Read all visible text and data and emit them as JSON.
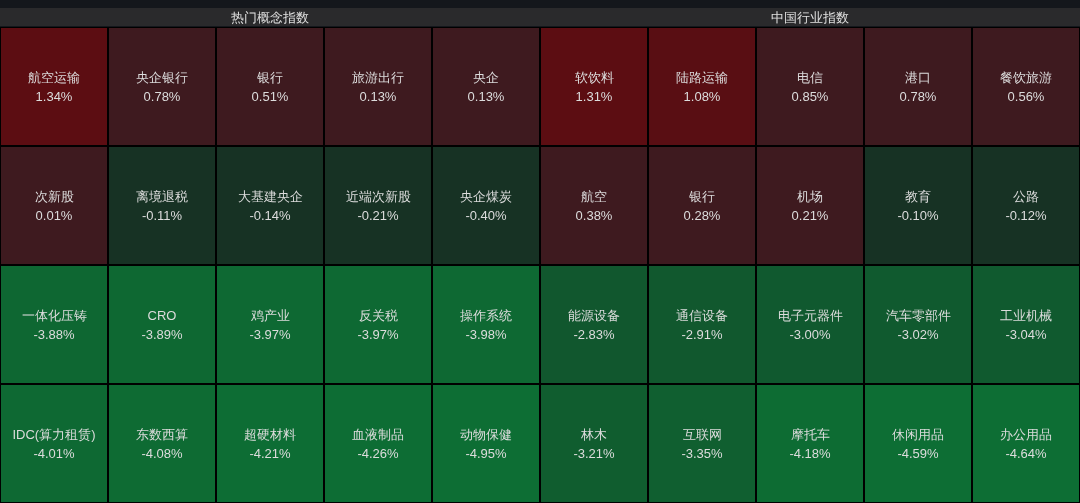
{
  "chart_data": [
    {
      "type": "other",
      "title": "热门概念指数",
      "categories": [
        "航空运输",
        "央企银行",
        "银行",
        "旅游出行",
        "央企",
        "次新股",
        "离境退税",
        "大基建央企",
        "近端次新股",
        "央企煤炭",
        "一体化压铸",
        "CRO",
        "鸡产业",
        "反关税",
        "操作系统",
        "IDC(算力租赁)",
        "东数西算",
        "超硬材料",
        "血液制品",
        "动物保健"
      ],
      "values": [
        1.34,
        0.78,
        0.51,
        0.13,
        0.13,
        0.01,
        -0.11,
        -0.14,
        -0.21,
        -0.4,
        -3.88,
        -3.89,
        -3.97,
        -3.97,
        -3.98,
        -4.01,
        -4.08,
        -4.21,
        -4.26,
        -4.95
      ],
      "value_labels": [
        "1.34%",
        "0.78%",
        "0.51%",
        "0.13%",
        "0.13%",
        "0.01%",
        "-0.11%",
        "-0.14%",
        "-0.21%",
        "-0.40%",
        "-3.88%",
        "-3.89%",
        "-3.97%",
        "-3.97%",
        "-3.98%",
        "-4.01%",
        "-4.08%",
        "-4.21%",
        "-4.26%",
        "-4.95%"
      ]
    },
    {
      "type": "other",
      "title": "中国行业指数",
      "categories": [
        "软饮料",
        "陆路运输",
        "电信",
        "港口",
        "餐饮旅游",
        "航空",
        "银行",
        "机场",
        "教育",
        "公路",
        "能源设备",
        "通信设备",
        "电子元器件",
        "汽车零部件",
        "工业机械",
        "林木",
        "互联网",
        "摩托车",
        "休闲用品",
        "办公用品"
      ],
      "values": [
        1.31,
        1.08,
        0.85,
        0.78,
        0.56,
        0.38,
        0.28,
        0.21,
        -0.1,
        -0.12,
        -2.83,
        -2.91,
        -3.0,
        -3.02,
        -3.04,
        -3.21,
        -3.35,
        -4.18,
        -4.59,
        -4.64
      ],
      "value_labels": [
        "1.31%",
        "1.08%",
        "0.85%",
        "0.78%",
        "0.56%",
        "0.38%",
        "0.28%",
        "0.21%",
        "-0.10%",
        "-0.12%",
        "-2.83%",
        "-2.91%",
        "-3.00%",
        "-3.02%",
        "-3.04%",
        "-3.21%",
        "-3.35%",
        "-4.18%",
        "-4.59%",
        "-4.64%"
      ]
    }
  ]
}
